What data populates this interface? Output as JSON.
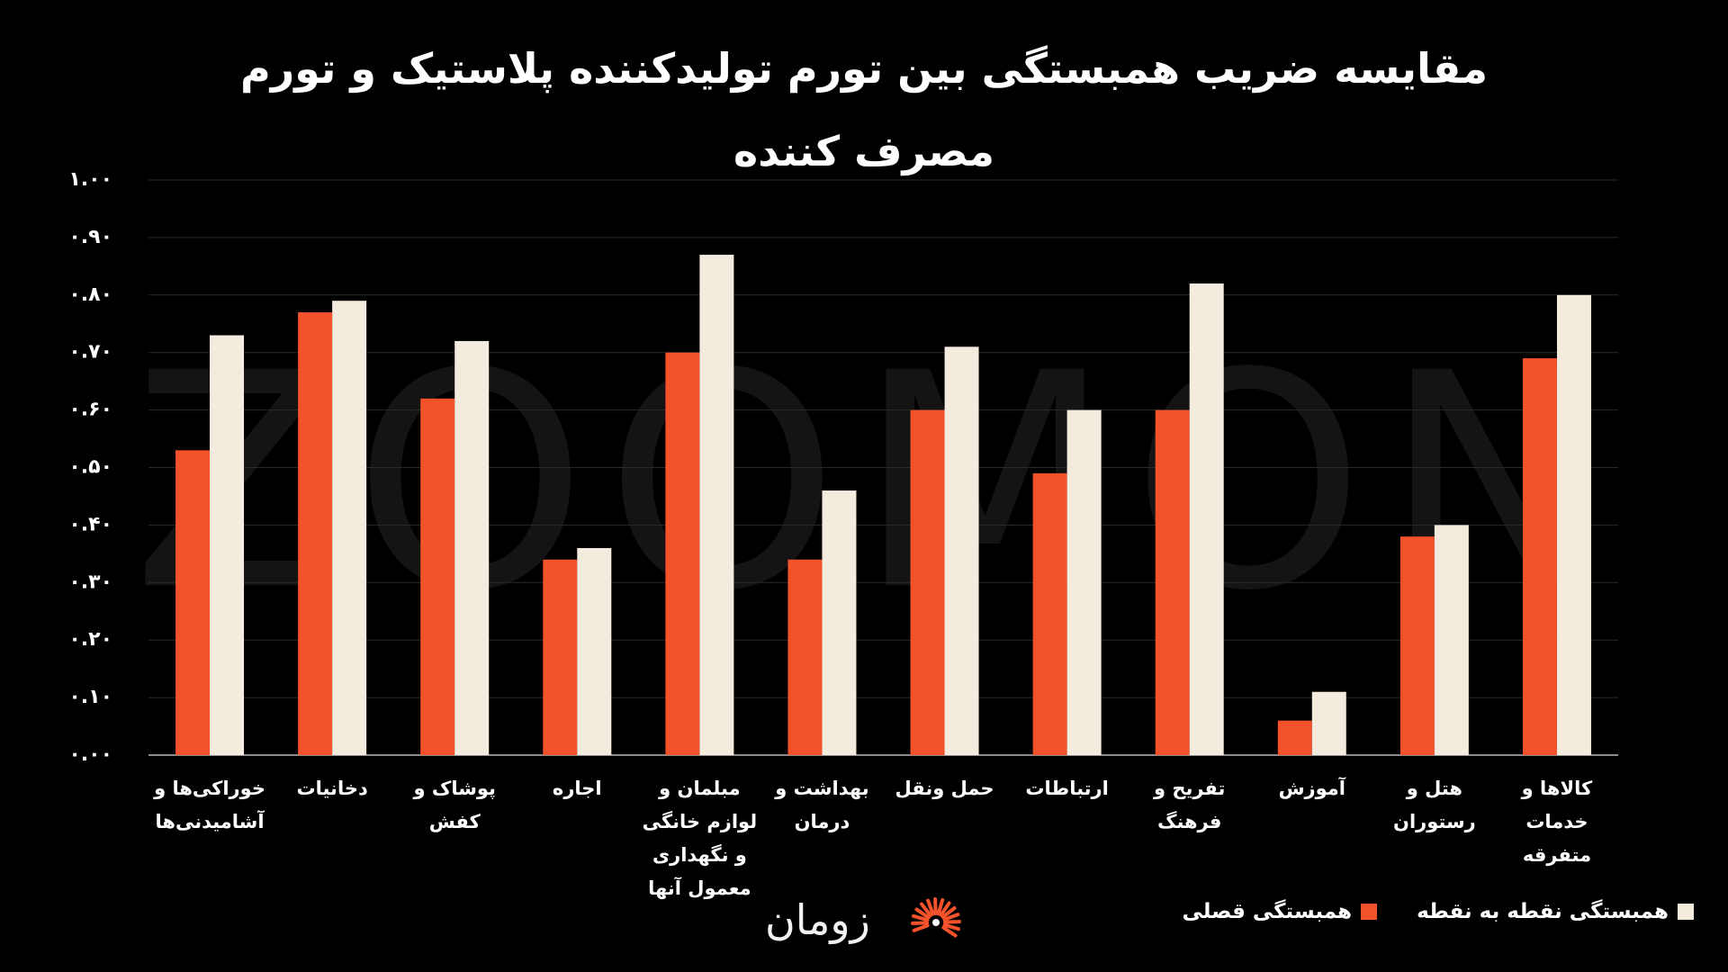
{
  "chart_data": {
    "type": "bar",
    "title": "مقایسه ضریب همبستگی بین تورم تولیدکننده پلاستیک و تورم مصرف کننده",
    "watermark": "ZOOMON",
    "brand": "زومان",
    "categories": [
      "خوراکی‌ها و آشامیدنی‌ها",
      "دخانیات",
      "پوشاک و کفش",
      "اجاره",
      "مبلمان و لوازم خانگی و نگهداری معمول آنها",
      "بهداشت و درمان",
      "حمل ونقل",
      "ارتباطات",
      "تفریح و فرهنگ",
      "آموزش",
      "هتل و رستوران",
      "کالاها و خدمات متفرقه"
    ],
    "series": [
      {
        "name": "همبستگی قصلی",
        "color": "#f4522b",
        "values": [
          0.53,
          0.77,
          0.62,
          0.34,
          0.7,
          0.34,
          0.6,
          0.49,
          0.6,
          0.06,
          0.38,
          0.69
        ]
      },
      {
        "name": "همبستگی نقطه به نقطه",
        "color": "#f3ebde",
        "values": [
          0.73,
          0.79,
          0.72,
          0.36,
          0.87,
          0.46,
          0.71,
          0.6,
          0.82,
          0.11,
          0.4,
          0.8
        ]
      }
    ],
    "ylim": [
      0,
      1
    ],
    "yticks": [
      {
        "value": 0,
        "label": "۰.۰۰"
      },
      {
        "value": 0.1,
        "label": "۰.۱۰"
      },
      {
        "value": 0.2,
        "label": "۰.۲۰"
      },
      {
        "value": 0.3,
        "label": "۰.۳۰"
      },
      {
        "value": 0.4,
        "label": "۰.۴۰"
      },
      {
        "value": 0.5,
        "label": "۰.۵۰"
      },
      {
        "value": 0.6,
        "label": "۰.۶۰"
      },
      {
        "value": 0.7,
        "label": "۰.۷۰"
      },
      {
        "value": 0.8,
        "label": "۰.۸۰"
      },
      {
        "value": 0.9,
        "label": "۰.۹۰"
      },
      {
        "value": 1,
        "label": "۱.۰۰"
      }
    ],
    "grid": true,
    "legend": "bottom-right"
  }
}
